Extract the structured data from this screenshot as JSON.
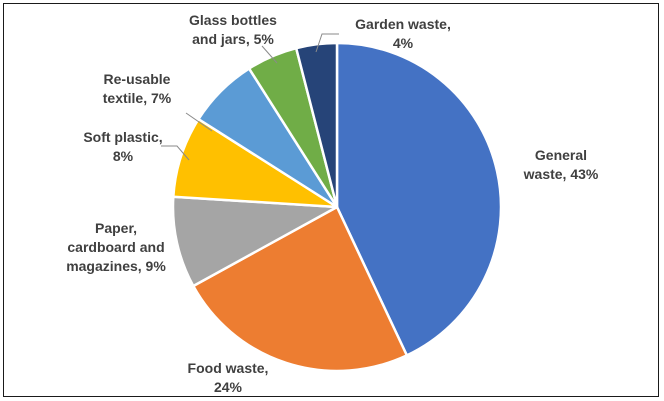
{
  "chart_data": {
    "type": "pie",
    "title": "",
    "slices": [
      {
        "name": "General waste",
        "value": 43,
        "color": "#4472C4",
        "label_lines": [
          "General",
          "waste, 43%"
        ]
      },
      {
        "name": "Food waste",
        "value": 24,
        "color": "#ED7D31",
        "label_lines": [
          "Food waste,",
          "24%"
        ]
      },
      {
        "name": "Paper, cardboard and magazines",
        "value": 9,
        "color": "#A5A5A5",
        "label_lines": [
          "Paper,",
          "cardboard and",
          "magazines, 9%"
        ]
      },
      {
        "name": "Soft plastic",
        "value": 8,
        "color": "#FFC000",
        "label_lines": [
          "Soft plastic,",
          "8%"
        ]
      },
      {
        "name": "Re-usable textile",
        "value": 7,
        "color": "#5B9BD5",
        "label_lines": [
          "Re-usable",
          "textile, 7%"
        ]
      },
      {
        "name": "Glass bottles and jars",
        "value": 5,
        "color": "#70AD47",
        "label_lines": [
          "Glass bottles",
          "and jars, 5%"
        ]
      },
      {
        "name": "Garden waste",
        "value": 4,
        "color": "#264478",
        "label_lines": [
          "Garden waste,",
          "4%"
        ]
      }
    ],
    "start_angle": "12 o'clock",
    "direction": "clockwise",
    "legend": "none",
    "labels": "outside"
  }
}
